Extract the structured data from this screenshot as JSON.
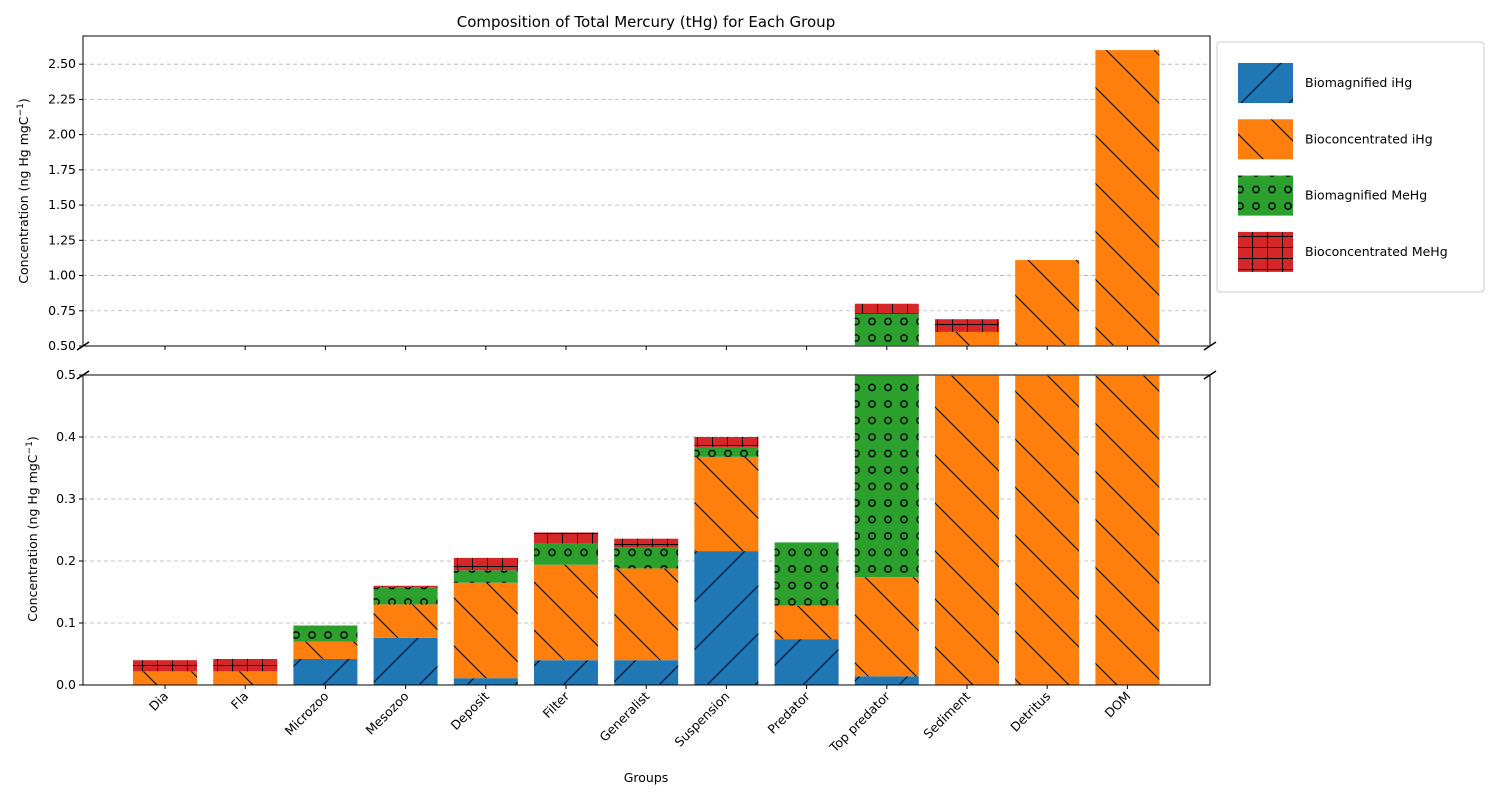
{
  "chart_data": {
    "type": "bar",
    "stacked": true,
    "title": "Composition of Total Mercury (tHg) for Each Group",
    "xlabel": "Groups",
    "ylabel_main": "Concentration (ng Hg mgC",
    "ylabel_sup": "−1",
    "ylabel_tail": ")",
    "broken_axis": true,
    "upper_ylim": [
      0.5,
      2.7
    ],
    "lower_ylim": [
      0,
      0.5
    ],
    "upper_ticks": [
      "0.50",
      "0.75",
      "1.00",
      "1.25",
      "1.50",
      "1.75",
      "2.00",
      "2.25",
      "2.50"
    ],
    "lower_ticks": [
      "0.0",
      "0.1",
      "0.2",
      "0.3",
      "0.4",
      "0.5"
    ],
    "grid": "y-dashed",
    "legend_position": "right, outside",
    "categories": [
      "Dia",
      "Fla",
      "Microzoo",
      "Mesozoo",
      "Deposit",
      "Filter",
      "Generalist",
      "Suspension",
      "Predator",
      "Top predator",
      "Sediment",
      "Detritus",
      "DOM"
    ],
    "series": [
      {
        "name": "Biomagnified iHg",
        "color": "#1f77b4",
        "hatch": "/",
        "values": [
          0,
          0,
          0.042,
          0.076,
          0.011,
          0.04,
          0.04,
          0.216,
          0.074,
          0.014,
          0,
          0,
          0
        ]
      },
      {
        "name": "Bioconcentrated iHg",
        "color": "#ff7f0e",
        "hatch": "\\",
        "values": [
          0.022,
          0.022,
          0.028,
          0.054,
          0.154,
          0.154,
          0.148,
          0.152,
          0.054,
          0.16,
          0.6,
          1.11,
          2.6
        ]
      },
      {
        "name": "Biomagnified MeHg",
        "color": "#2ca02c",
        "hatch": "o",
        "values": [
          0,
          0,
          0.026,
          0.028,
          0.02,
          0.034,
          0.034,
          0.016,
          0.102,
          0.556,
          0,
          0,
          0
        ]
      },
      {
        "name": "Bioconcentrated MeHg",
        "color": "#d62728",
        "hatch": "+",
        "values": [
          0.018,
          0.02,
          0,
          0.002,
          0.02,
          0.018,
          0.014,
          0.016,
          0,
          0.07,
          0.09,
          0,
          0
        ]
      }
    ]
  }
}
